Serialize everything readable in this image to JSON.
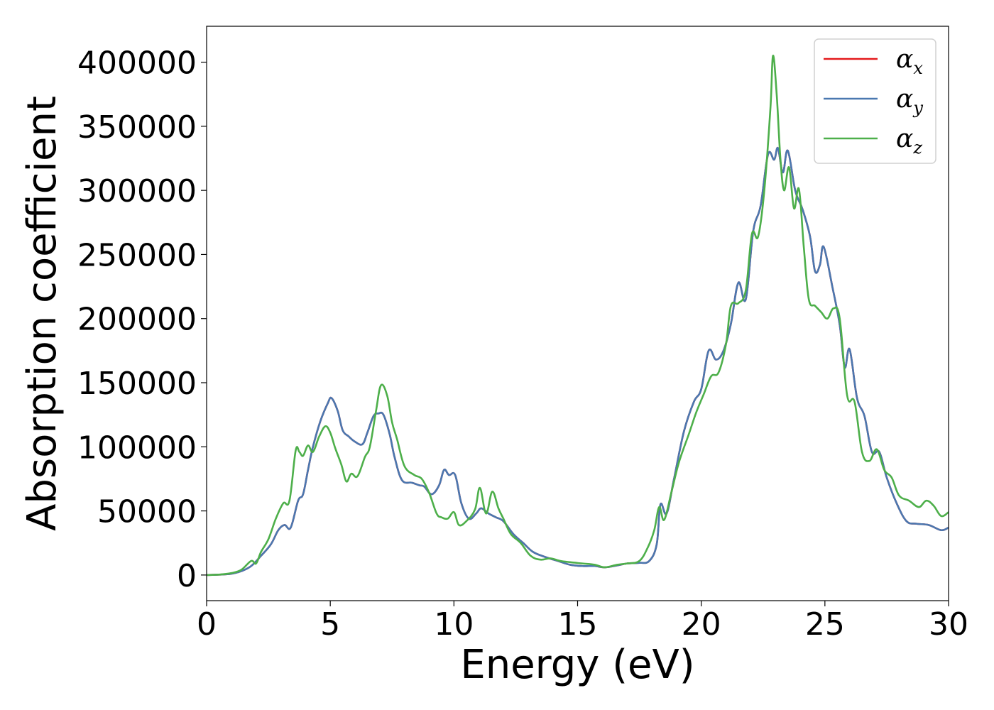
{
  "chart_data": {
    "type": "line",
    "title": "",
    "xlabel": "Energy (eV)",
    "ylabel": "Absorption coefficient",
    "xlim": [
      0,
      30
    ],
    "ylim": [
      -20000,
      428000
    ],
    "xticks": [
      0,
      5,
      10,
      15,
      20,
      25,
      30
    ],
    "yticks": [
      0,
      50000,
      100000,
      150000,
      200000,
      250000,
      300000,
      350000,
      400000
    ],
    "xtick_labels": [
      "0",
      "5",
      "10",
      "15",
      "20",
      "25",
      "30"
    ],
    "ytick_labels": [
      "0",
      "50000",
      "100000",
      "150000",
      "200000",
      "250000",
      "300000",
      "350000",
      "400000"
    ],
    "grid": false,
    "legend_position": "top-right",
    "series": [
      {
        "name": "αx",
        "legend_base": "α",
        "legend_sub": "x",
        "color": "#e41a1c",
        "x": [
          0,
          0.5,
          1.0,
          1.4,
          1.8,
          2.2,
          2.6,
          2.9,
          3.15,
          3.4,
          3.7,
          3.9,
          4.1,
          4.3,
          4.6,
          4.9,
          5.05,
          5.3,
          5.5,
          5.75,
          6.0,
          6.3,
          6.5,
          6.75,
          6.95,
          7.15,
          7.4,
          7.6,
          7.9,
          8.3,
          8.6,
          8.8,
          9.1,
          9.4,
          9.6,
          9.8,
          10.05,
          10.3,
          10.6,
          10.9,
          11.1,
          11.4,
          11.7,
          12.0,
          12.4,
          12.8,
          13.2,
          13.7,
          14.2,
          14.7,
          15.2,
          15.7,
          16.1,
          16.6,
          17.0,
          17.5,
          17.9,
          18.2,
          18.35,
          18.6,
          18.9,
          19.3,
          19.7,
          20.0,
          20.3,
          20.6,
          20.9,
          21.2,
          21.5,
          21.8,
          22.1,
          22.4,
          22.7,
          22.95,
          23.1,
          23.3,
          23.5,
          23.8,
          24.1,
          24.4,
          24.6,
          24.8,
          24.95,
          25.3,
          25.6,
          25.8,
          26.0,
          26.3,
          26.6,
          26.9,
          27.2,
          27.5,
          27.9,
          28.3,
          28.7,
          29.2,
          29.7,
          30.0
        ],
        "values": [
          0,
          300,
          1000,
          3000,
          7000,
          15000,
          24000,
          35000,
          39000,
          37000,
          58000,
          63000,
          82000,
          100000,
          120000,
          134000,
          138000,
          128000,
          113000,
          108000,
          104000,
          102000,
          111000,
          124000,
          126000,
          125000,
          110000,
          92000,
          74000,
          72000,
          70000,
          69000,
          63000,
          70000,
          82000,
          78000,
          78000,
          56000,
          44000,
          48000,
          52000,
          48000,
          45000,
          42000,
          32000,
          25000,
          18000,
          14000,
          11000,
          8000,
          7000,
          7000,
          6000,
          7500,
          9000,
          9500,
          11000,
          24000,
          55000,
          48000,
          75000,
          112000,
          135000,
          145000,
          175000,
          168000,
          175000,
          196000,
          228000,
          215000,
          268000,
          288000,
          328000,
          324000,
          333000,
          314000,
          331000,
          300000,
          285000,
          264000,
          237000,
          242000,
          256000,
          225000,
          195000,
          162000,
          176000,
          138000,
          124000,
          96000,
          96000,
          76000,
          56000,
          42000,
          40000,
          39000,
          35000,
          37000
        ]
      },
      {
        "name": "αy",
        "legend_base": "α",
        "legend_sub": "y",
        "color": "#4a78b0",
        "x": [
          0,
          0.5,
          1.0,
          1.4,
          1.8,
          2.2,
          2.6,
          2.9,
          3.15,
          3.4,
          3.7,
          3.9,
          4.1,
          4.3,
          4.6,
          4.9,
          5.05,
          5.3,
          5.5,
          5.75,
          6.0,
          6.3,
          6.5,
          6.75,
          6.95,
          7.15,
          7.4,
          7.6,
          7.9,
          8.3,
          8.6,
          8.8,
          9.1,
          9.4,
          9.6,
          9.8,
          10.05,
          10.3,
          10.6,
          10.9,
          11.1,
          11.4,
          11.7,
          12.0,
          12.4,
          12.8,
          13.2,
          13.7,
          14.2,
          14.7,
          15.2,
          15.7,
          16.1,
          16.6,
          17.0,
          17.5,
          17.9,
          18.2,
          18.35,
          18.6,
          18.9,
          19.3,
          19.7,
          20.0,
          20.3,
          20.6,
          20.9,
          21.2,
          21.5,
          21.8,
          22.1,
          22.4,
          22.7,
          22.95,
          23.1,
          23.3,
          23.5,
          23.8,
          24.1,
          24.4,
          24.6,
          24.8,
          24.95,
          25.3,
          25.6,
          25.8,
          26.0,
          26.3,
          26.6,
          26.9,
          27.2,
          27.5,
          27.9,
          28.3,
          28.7,
          29.2,
          29.7,
          30.0
        ],
        "values": [
          0,
          300,
          1000,
          3000,
          7000,
          15000,
          24000,
          35000,
          39000,
          37000,
          58000,
          63000,
          82000,
          100000,
          120000,
          134000,
          138000,
          128000,
          113000,
          108000,
          104000,
          102000,
          111000,
          124000,
          126000,
          125000,
          110000,
          92000,
          74000,
          72000,
          70000,
          69000,
          63000,
          70000,
          82000,
          78000,
          78000,
          56000,
          44000,
          48000,
          52000,
          48000,
          45000,
          42000,
          32000,
          25000,
          18000,
          14000,
          11000,
          8000,
          7000,
          7000,
          6000,
          7500,
          9000,
          9500,
          11000,
          24000,
          55000,
          48000,
          75000,
          112000,
          135000,
          145000,
          175000,
          168000,
          175000,
          196000,
          228000,
          215000,
          268000,
          288000,
          328000,
          324000,
          333000,
          314000,
          331000,
          300000,
          285000,
          264000,
          237000,
          242000,
          256000,
          225000,
          195000,
          162000,
          176000,
          138000,
          124000,
          96000,
          96000,
          76000,
          56000,
          42000,
          40000,
          39000,
          35000,
          37000
        ]
      },
      {
        "name": "αz",
        "legend_base": "α",
        "legend_sub": "z",
        "color": "#4daf4a",
        "x": [
          0,
          0.5,
          1.0,
          1.4,
          1.8,
          2.0,
          2.2,
          2.5,
          2.8,
          3.1,
          3.35,
          3.6,
          3.75,
          3.9,
          4.1,
          4.3,
          4.55,
          4.8,
          5.0,
          5.2,
          5.45,
          5.65,
          5.85,
          6.1,
          6.4,
          6.6,
          6.85,
          7.05,
          7.3,
          7.5,
          7.7,
          8.0,
          8.4,
          8.7,
          9.0,
          9.3,
          9.5,
          9.75,
          10.0,
          10.2,
          10.5,
          10.85,
          11.05,
          11.3,
          11.55,
          11.8,
          12.0,
          12.3,
          12.7,
          13.1,
          13.5,
          13.9,
          14.3,
          14.7,
          15.2,
          15.7,
          16.1,
          16.6,
          17.0,
          17.5,
          17.85,
          18.1,
          18.3,
          18.5,
          18.8,
          19.1,
          19.5,
          19.8,
          20.1,
          20.4,
          20.7,
          21.0,
          21.2,
          21.5,
          21.8,
          22.05,
          22.3,
          22.55,
          22.8,
          22.9,
          23.05,
          23.2,
          23.35,
          23.55,
          23.75,
          23.95,
          24.15,
          24.35,
          24.6,
          24.85,
          25.1,
          25.35,
          25.6,
          25.9,
          26.2,
          26.5,
          26.8,
          27.1,
          27.4,
          27.7,
          28.0,
          28.4,
          28.8,
          29.1,
          29.4,
          29.7,
          30.0
        ],
        "values": [
          0,
          300,
          1500,
          4000,
          11000,
          9000,
          18000,
          28000,
          44000,
          56000,
          58000,
          97000,
          96000,
          93000,
          101000,
          96000,
          108000,
          116000,
          111000,
          99000,
          86000,
          73000,
          79000,
          77000,
          92000,
          100000,
          128000,
          148000,
          140000,
          119000,
          106000,
          85000,
          78000,
          75000,
          64000,
          48000,
          45000,
          44000,
          49000,
          39000,
          42000,
          51000,
          68000,
          48000,
          65000,
          52000,
          44000,
          32000,
          25000,
          15000,
          12000,
          13000,
          11000,
          10000,
          9000,
          8000,
          6000,
          8000,
          9000,
          11000,
          22000,
          35000,
          53000,
          43000,
          65000,
          88000,
          110000,
          127000,
          141000,
          155000,
          158000,
          180000,
          210000,
          212000,
          222000,
          266000,
          264000,
          300000,
          365000,
          405000,
          375000,
          325000,
          300000,
          318000,
          286000,
          301000,
          255000,
          215000,
          210000,
          205000,
          200000,
          208000,
          200000,
          140000,
          135000,
          96000,
          89000,
          98000,
          82000,
          76000,
          62000,
          58000,
          53000,
          58000,
          54000,
          46000,
          49000
        ]
      }
    ]
  }
}
